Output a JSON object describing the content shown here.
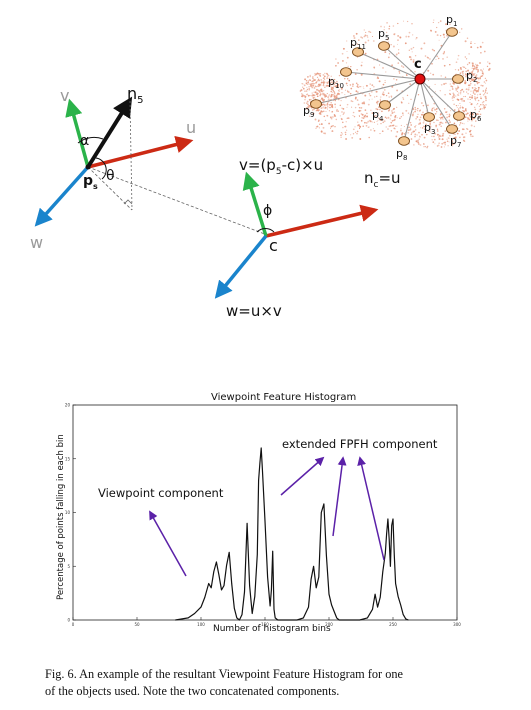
{
  "figure": {
    "angles": {
      "alpha": "α",
      "theta": "θ",
      "phi": "ϕ"
    },
    "vector_labels": {
      "v_left": "v",
      "n5": "n",
      "n5_sub": "5",
      "u_left": "u",
      "p_left": "p",
      "p_left_sub": "s",
      "w_left": "w",
      "v_right": "v=(p",
      "v_right_sub": "5",
      "v_right_tail": "-c)×u",
      "c_label": "c",
      "nc": "n",
      "nc_sub": "c",
      "nc_tail": "=u",
      "w_right": "w=u×v"
    },
    "cloud": {
      "center_label": "c",
      "points": [
        {
          "name": "p",
          "sub": "1"
        },
        {
          "name": "p",
          "sub": "2"
        },
        {
          "name": "p",
          "sub": "3"
        },
        {
          "name": "p",
          "sub": "4"
        },
        {
          "name": "p",
          "sub": "5"
        },
        {
          "name": "p",
          "sub": "6"
        },
        {
          "name": "p",
          "sub": "7"
        },
        {
          "name": "p",
          "sub": "8"
        },
        {
          "name": "p",
          "sub": "9"
        },
        {
          "name": "p",
          "sub": "10"
        },
        {
          "name": "p",
          "sub": "11"
        }
      ]
    },
    "colors": {
      "red": "#cc2a14",
      "green": "#2bb34a",
      "blue": "#1a84cc",
      "black": "#111111",
      "orange": "#f3c58e",
      "cloud": "#e79a80"
    }
  },
  "chart_data": {
    "type": "line",
    "title": "Viewpoint Feature Histogram",
    "xlabel": "Number of histogram bins",
    "ylabel": "Percentage of points falling in each bin",
    "xlim": [
      0,
      300
    ],
    "ylim": [
      0,
      20
    ],
    "xticks": [
      "0",
      "50",
      "100",
      "150",
      "200",
      "250",
      "300"
    ],
    "yticks": [
      "0",
      "5",
      "10",
      "15",
      "20"
    ],
    "annotations": {
      "viewpoint": "Viewpoint component",
      "fpfh": "extended FPFH component"
    },
    "series": [
      {
        "x": [
          80,
          90,
          95,
          100,
          103,
          106,
          108,
          110,
          112,
          114,
          116,
          118,
          120,
          122,
          124,
          126,
          128,
          130,
          132,
          134,
          136,
          138,
          140,
          142,
          144,
          145,
          146,
          147,
          148,
          150,
          152,
          154,
          155,
          156,
          157,
          158,
          160,
          162,
          164,
          166,
          170,
          175,
          180,
          184,
          186,
          188,
          190,
          192,
          194,
          196,
          198,
          200,
          202,
          204,
          206,
          208,
          212,
          218,
          224,
          230,
          234,
          236,
          238,
          240,
          242,
          244,
          245,
          246,
          247,
          248,
          249,
          250,
          251,
          252,
          254,
          256,
          258,
          260,
          262
        ],
        "values": [
          0,
          0.2,
          0.6,
          1.2,
          2.1,
          3.4,
          3.0,
          4.5,
          5.4,
          4.2,
          2.8,
          3.2,
          5.1,
          6.3,
          3.4,
          1.1,
          0.2,
          0.0,
          0.5,
          2.6,
          9.0,
          3.2,
          0.6,
          2.2,
          6.1,
          13.0,
          14.6,
          16.0,
          14.0,
          9.2,
          4.0,
          1.3,
          2.8,
          6.4,
          1.0,
          0.2,
          0.0,
          0.0,
          0.0,
          0.0,
          0.0,
          0.0,
          0.2,
          1.2,
          3.8,
          5.0,
          3.0,
          4.0,
          10.0,
          10.8,
          6.0,
          2.4,
          1.4,
          0.8,
          0.2,
          0.0,
          0.0,
          0.0,
          0.0,
          0.2,
          1.0,
          2.4,
          1.2,
          2.1,
          4.5,
          6.2,
          8.0,
          9.4,
          7.5,
          5.0,
          8.8,
          9.4,
          6.0,
          3.4,
          2.2,
          1.4,
          0.5,
          0.1,
          0.0
        ]
      }
    ]
  },
  "caption": {
    "line1": "Fig. 6.   An example of the resultant Viewpoint Feature Histogram for one",
    "line2": "of the objects used. Note the two concatenated components."
  }
}
